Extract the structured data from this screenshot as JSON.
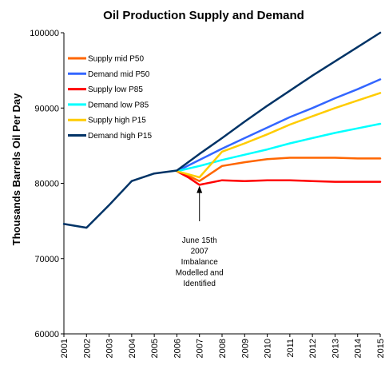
{
  "chart_data": {
    "type": "line",
    "title": "Oil Production Supply and Demand",
    "xlabel": "",
    "ylabel": "Thousands Barrels Oil Per Day",
    "x": [
      2001,
      2002,
      2003,
      2004,
      2005,
      2006,
      2007,
      2008,
      2009,
      2010,
      2011,
      2012,
      2013,
      2014,
      2015
    ],
    "xlim": [
      2001,
      2015
    ],
    "ylim": [
      60000,
      100000
    ],
    "yticks": [
      "60000",
      "70000",
      "80000",
      "90000",
      "100000"
    ],
    "xticks": [
      "2001",
      "2002",
      "2003",
      "2004",
      "2005",
      "2006",
      "2007",
      "2008",
      "2009",
      "2010",
      "2011",
      "2012",
      "2013",
      "2014",
      "2015"
    ],
    "grid": false,
    "legend_position": "top-left",
    "series": [
      {
        "name": "Supply mid  P50",
        "color": "#ff6600",
        "points": [
          [
            2006,
            81600
          ],
          [
            2006.5,
            81000
          ],
          [
            2007,
            80300
          ],
          [
            2008,
            82300
          ],
          [
            2009,
            82800
          ],
          [
            2010,
            83200
          ],
          [
            2011,
            83400
          ],
          [
            2012,
            83400
          ],
          [
            2013,
            83400
          ],
          [
            2014,
            83300
          ],
          [
            2015,
            83300
          ]
        ]
      },
      {
        "name": "Demand mid  P50",
        "color": "#3366ff",
        "points": [
          [
            2006,
            81600
          ],
          [
            2007,
            83100
          ],
          [
            2008,
            84600
          ],
          [
            2009,
            86000
          ],
          [
            2010,
            87400
          ],
          [
            2011,
            88800
          ],
          [
            2012,
            90000
          ],
          [
            2013,
            91300
          ],
          [
            2014,
            92500
          ],
          [
            2015,
            93800
          ]
        ]
      },
      {
        "name": "Supply low  P85",
        "color": "#ff0000",
        "points": [
          [
            2006,
            81600
          ],
          [
            2006.5,
            80800
          ],
          [
            2007,
            79800
          ],
          [
            2008,
            80400
          ],
          [
            2009,
            80300
          ],
          [
            2010,
            80400
          ],
          [
            2011,
            80400
          ],
          [
            2012,
            80300
          ],
          [
            2013,
            80200
          ],
          [
            2014,
            80200
          ],
          [
            2015,
            80200
          ]
        ]
      },
      {
        "name": "Demand low  P85",
        "color": "#00ffff",
        "points": [
          [
            2006,
            81600
          ],
          [
            2007,
            82300
          ],
          [
            2008,
            83100
          ],
          [
            2009,
            83800
          ],
          [
            2010,
            84500
          ],
          [
            2011,
            85300
          ],
          [
            2012,
            86000
          ],
          [
            2013,
            86700
          ],
          [
            2014,
            87300
          ],
          [
            2015,
            87900
          ]
        ]
      },
      {
        "name": "Supply high  P15",
        "color": "#ffcc00",
        "points": [
          [
            2006,
            81600
          ],
          [
            2006.5,
            81200
          ],
          [
            2007,
            80800
          ],
          [
            2008,
            84200
          ],
          [
            2009,
            85300
          ],
          [
            2010,
            86500
          ],
          [
            2011,
            87800
          ],
          [
            2012,
            88900
          ],
          [
            2013,
            90000
          ],
          [
            2014,
            91000
          ],
          [
            2015,
            92000
          ]
        ]
      },
      {
        "name": "Demand high  P15",
        "color": "#003366",
        "points": [
          [
            2001,
            74600
          ],
          [
            2002,
            74100
          ],
          [
            2003,
            77100
          ],
          [
            2004,
            80300
          ],
          [
            2005,
            81300
          ],
          [
            2006,
            81700
          ],
          [
            2007,
            83900
          ],
          [
            2008,
            86000
          ],
          [
            2009,
            88200
          ],
          [
            2010,
            90300
          ],
          [
            2011,
            92300
          ],
          [
            2012,
            94300
          ],
          [
            2013,
            96200
          ],
          [
            2014,
            98100
          ],
          [
            2015,
            100000
          ]
        ]
      }
    ],
    "annotation": {
      "lines": [
        "June 15th",
        "2007",
        "Imbalance",
        "Modelled and",
        "Identified"
      ],
      "arrow_target": [
        2007,
        80300
      ]
    }
  }
}
